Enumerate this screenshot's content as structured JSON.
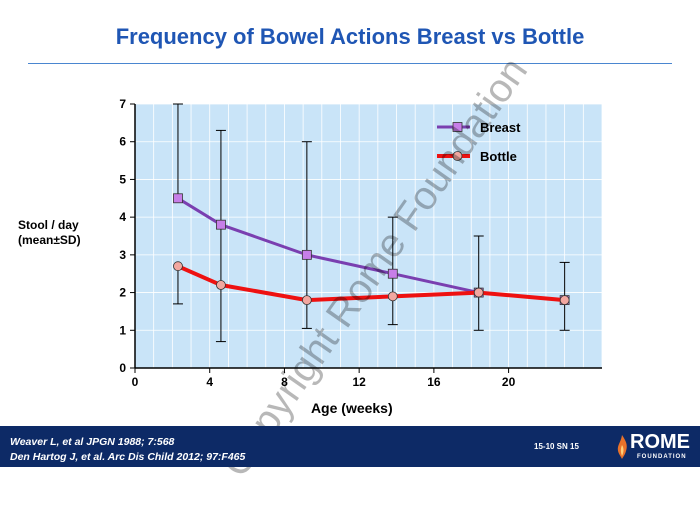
{
  "slide": {
    "title": "Frequency of Bowel Actions Breast vs Bottle",
    "watermark": "Copyright Rome Foundation",
    "citations": [
      "Weaver L, et al JPGN 1988; 7:568",
      "Den Hartog J, et al. Arc Dis Child 2012; 97:F465"
    ],
    "slide_code": "15-10  SN 15",
    "logo_word": "ROME",
    "logo_sub": "FOUNDATION"
  },
  "colors": {
    "title": "#1f56b4",
    "plot_bg": "#c9e4f8",
    "breast": "#7a3fb0",
    "breast_marker": "#c77ee8",
    "bottle": "#ee1111",
    "bottle_marker": "#f2a7a0",
    "footer": "#0d2a66",
    "logo_flame": "#e8722a"
  },
  "chart_data": {
    "type": "line",
    "title": "Frequency of Bowel Actions Breast vs Bottle",
    "xlabel": "Age (weeks)",
    "ylabel_lines": [
      "Stool / day",
      "(mean±SD)"
    ],
    "xlim": [
      0,
      25
    ],
    "ylim": [
      0,
      7
    ],
    "xticks": [
      0,
      4,
      8,
      12,
      16,
      20
    ],
    "yticks": [
      0,
      1,
      2,
      3,
      4,
      5,
      6,
      7
    ],
    "grid": true,
    "legend_position": "top-right",
    "series": [
      {
        "name": "Breast",
        "x": [
          2.3,
          4.6,
          9.2,
          13.8,
          18.4,
          23.0
        ],
        "y": [
          4.5,
          3.8,
          3.0,
          2.5,
          2.0,
          1.8
        ],
        "err_upper": [
          7.0,
          6.3,
          6.0,
          4.0,
          3.5,
          2.8
        ],
        "err_lower": [
          null,
          0.7,
          1.05,
          1.15,
          1.0,
          1.0
        ]
      },
      {
        "name": "Bottle",
        "x": [
          2.3,
          4.6,
          9.2,
          13.8,
          18.4,
          23.0
        ],
        "y": [
          2.7,
          2.2,
          1.8,
          1.9,
          2.0,
          1.8
        ],
        "err_upper": [
          null,
          null,
          null,
          null,
          null,
          null
        ],
        "err_lower": [
          1.7,
          null,
          null,
          null,
          null,
          null
        ]
      }
    ]
  }
}
